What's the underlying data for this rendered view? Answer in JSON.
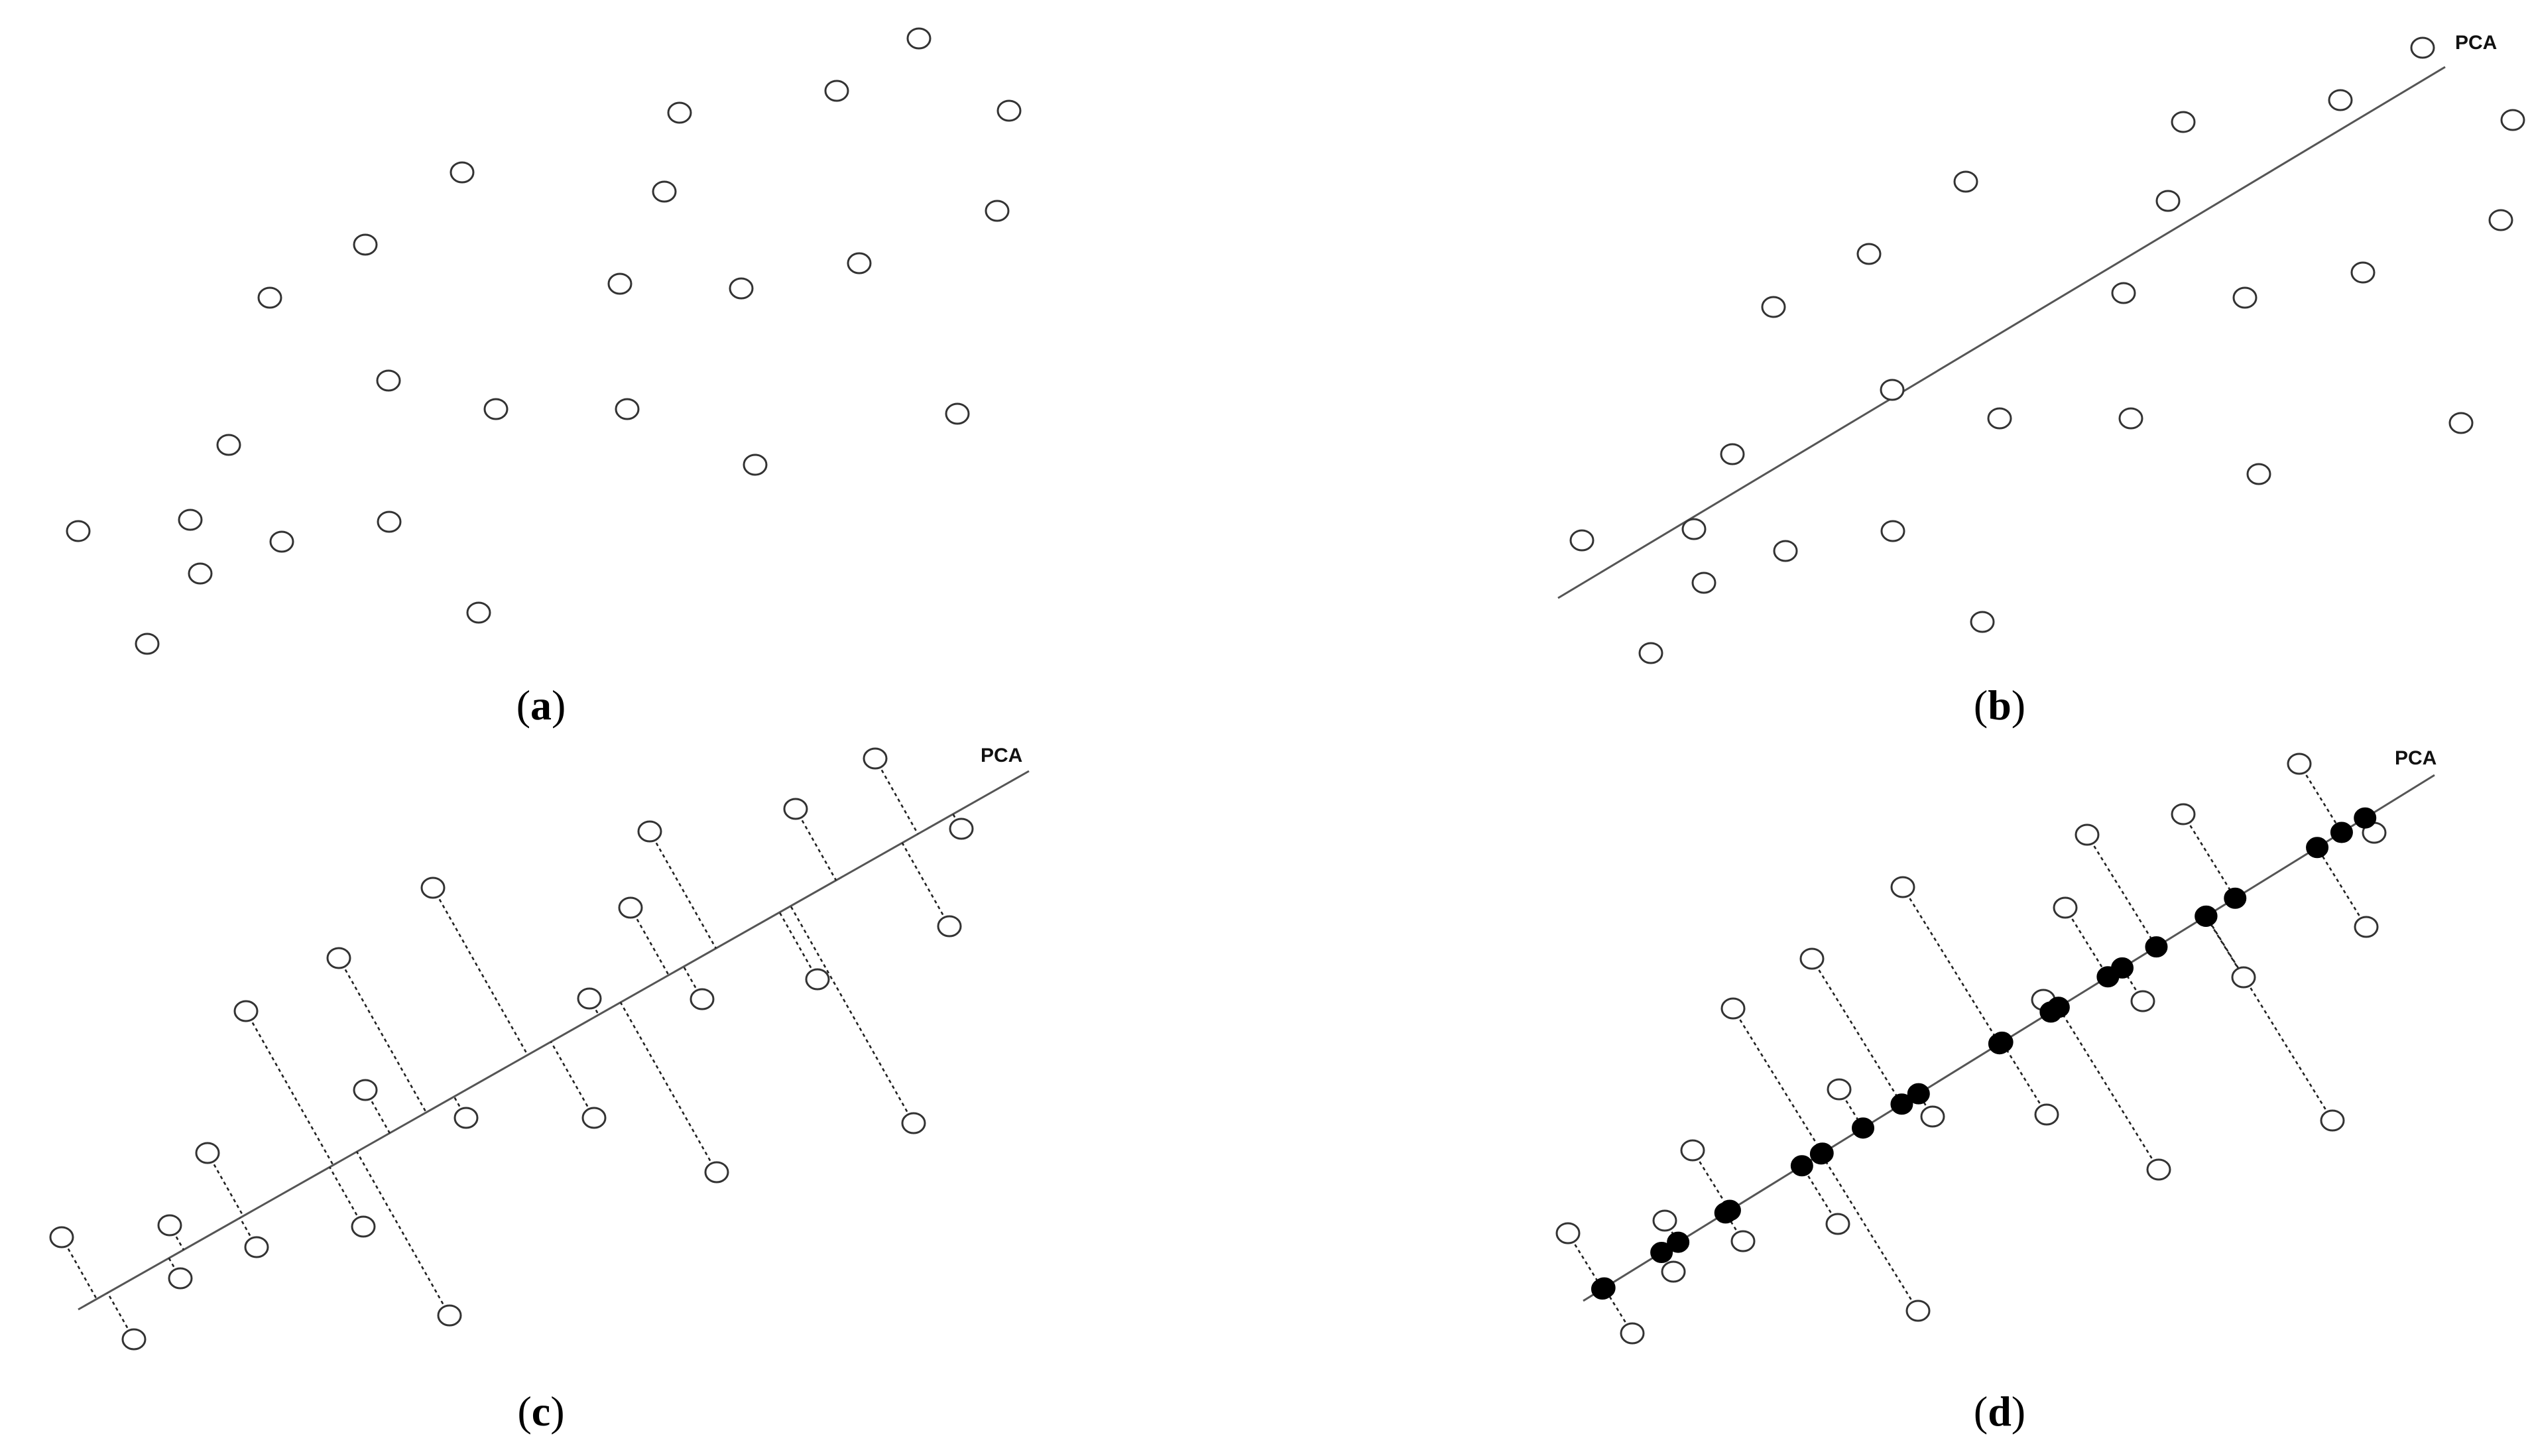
{
  "panels": [
    {
      "id": "a",
      "caption": {
        "open": "(",
        "letter": "a",
        "close": ")"
      },
      "pca_label": ""
    },
    {
      "id": "b",
      "caption": {
        "open": "(",
        "letter": "b",
        "close": ")"
      },
      "pca_label": "PCA"
    },
    {
      "id": "c",
      "caption": {
        "open": "(",
        "letter": "c",
        "close": ")"
      },
      "pca_label": "PCA"
    },
    {
      "id": "d",
      "caption": {
        "open": "(",
        "letter": "d",
        "close": ")"
      },
      "pca_label": "PCA"
    }
  ],
  "colors": {
    "point_stroke": "#333333",
    "projection_fill": "#000000",
    "line": "#555555"
  }
}
